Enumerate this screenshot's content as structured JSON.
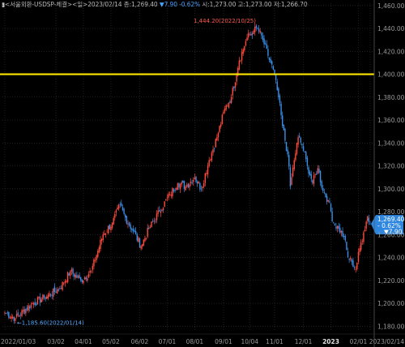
{
  "header": {
    "marker": "▮",
    "instrument": "<서울외환-USDSP-체결>",
    "period": "<일>",
    "date": "2023/02/14",
    "close_label": "종:",
    "close": "1,269.40",
    "change": "▼7.90",
    "change_pct": "-0.62%",
    "open_label": "시:",
    "open": "1,273.00",
    "high_label": "고:",
    "high": "1,273.00",
    "low_label": "저:",
    "low": "1,266.70"
  },
  "colors": {
    "background": "#000000",
    "up": "#ff4b3e",
    "down": "#3b8fe8",
    "grid": "#333333",
    "hline": "#ffe600",
    "badge": "#2e86de"
  },
  "chart_data": {
    "type": "candlestick",
    "title": "",
    "xlabel": "",
    "ylabel": "",
    "ylim": [
      1176,
      1462
    ],
    "grid": true,
    "y_ticks": [
      "1,460.00",
      "1,440.00",
      "1,420.00",
      "1,400.00",
      "1,380.00",
      "1,360.00",
      "1,340.00",
      "1,320.00",
      "1,300.00",
      "1,280.00",
      "1,260.00",
      "1,240.00",
      "1,220.00",
      "1,200.00",
      "1,180.00"
    ],
    "x_ticks": [
      {
        "label": "2022/01/03",
        "index": 0
      },
      {
        "label": "03/02",
        "index": 39
      },
      {
        "label": "04/01",
        "index": 60
      },
      {
        "label": "05/02",
        "index": 81
      },
      {
        "label": "06/02",
        "index": 103
      },
      {
        "label": "07/01",
        "index": 124
      },
      {
        "label": "08/01",
        "index": 145
      },
      {
        "label": "09/01",
        "index": 167
      },
      {
        "label": "10/04",
        "index": 187
      },
      {
        "label": "11/01",
        "index": 206
      },
      {
        "label": "12/01",
        "index": 228
      },
      {
        "label": "2023",
        "index": 249,
        "bold": true
      },
      {
        "label": "02/01",
        "index": 270
      },
      {
        "label": "2023/02/14",
        "index": 279
      }
    ],
    "horizontal_line": 1400,
    "max_annotation": {
      "text": "1,444.20(2022/10/25)",
      "value": 1444.2,
      "index": 193
    },
    "min_annotation": {
      "text": "1,185.60(2022/01/14)",
      "value": 1185.6,
      "index": 8
    },
    "last_price_badge": {
      "line1": "1,269.40",
      "line2": "- 0.62%",
      "line3": "▼7.90",
      "value": 1269.4
    },
    "close_anchors": [
      [
        0,
        1192
      ],
      [
        8,
        1187
      ],
      [
        20,
        1199
      ],
      [
        30,
        1205
      ],
      [
        42,
        1213
      ],
      [
        50,
        1228
      ],
      [
        58,
        1220
      ],
      [
        66,
        1228
      ],
      [
        75,
        1260
      ],
      [
        82,
        1270
      ],
      [
        88,
        1286
      ],
      [
        92,
        1275
      ],
      [
        98,
        1263
      ],
      [
        104,
        1250
      ],
      [
        110,
        1265
      ],
      [
        118,
        1280
      ],
      [
        126,
        1295
      ],
      [
        132,
        1305
      ],
      [
        138,
        1302
      ],
      [
        145,
        1310
      ],
      [
        150,
        1300
      ],
      [
        156,
        1325
      ],
      [
        162,
        1345
      ],
      [
        168,
        1370
      ],
      [
        173,
        1380
      ],
      [
        179,
        1412
      ],
      [
        185,
        1432
      ],
      [
        190,
        1438
      ],
      [
        193,
        1440
      ],
      [
        197,
        1430
      ],
      [
        201,
        1416
      ],
      [
        205,
        1404
      ],
      [
        209,
        1380
      ],
      [
        212,
        1355
      ],
      [
        216,
        1330
      ],
      [
        218,
        1302
      ],
      [
        221,
        1325
      ],
      [
        224,
        1345
      ],
      [
        227,
        1338
      ],
      [
        231,
        1320
      ],
      [
        235,
        1305
      ],
      [
        239,
        1318
      ],
      [
        243,
        1298
      ],
      [
        247,
        1290
      ],
      [
        251,
        1270
      ],
      [
        255,
        1265
      ],
      [
        259,
        1258
      ],
      [
        262,
        1240
      ],
      [
        265,
        1236
      ],
      [
        268,
        1230
      ],
      [
        271,
        1248
      ],
      [
        274,
        1262
      ],
      [
        277,
        1276
      ],
      [
        279,
        1269.4
      ]
    ]
  }
}
